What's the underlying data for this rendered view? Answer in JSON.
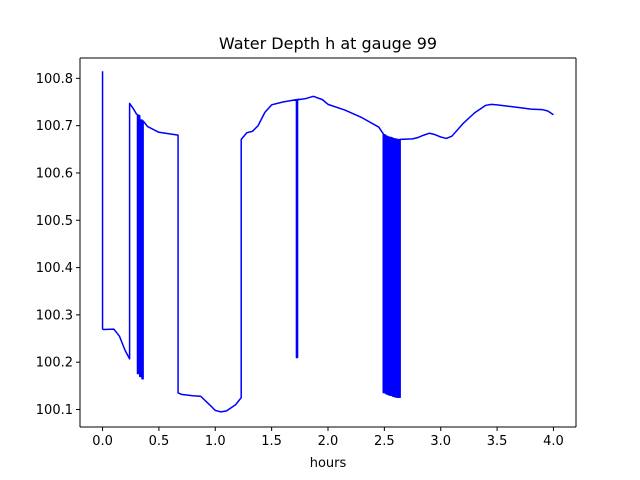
{
  "chart_data": {
    "type": "line",
    "title": "Water Depth h at gauge 99",
    "xlabel": "hours",
    "ylabel": "",
    "xlim": [
      -0.2,
      4.2
    ],
    "ylim": [
      100.063,
      100.843
    ],
    "xticks": [
      0.0,
      0.5,
      1.0,
      1.5,
      2.0,
      2.5,
      3.0,
      3.5,
      4.0
    ],
    "xtick_labels": [
      "0.0",
      "0.5",
      "1.0",
      "1.5",
      "2.0",
      "2.5",
      "3.0",
      "3.5",
      "4.0"
    ],
    "yticks": [
      100.1,
      100.2,
      100.3,
      100.4,
      100.5,
      100.6,
      100.7,
      100.8
    ],
    "ytick_labels": [
      "100.1",
      "100.2",
      "100.3",
      "100.4",
      "100.5",
      "100.6",
      "100.7",
      "100.8"
    ],
    "grid": false,
    "series": [
      {
        "color": "#0000ff",
        "x": [
          0.0,
          0.0,
          0.01,
          0.1,
          0.15,
          0.2,
          0.24,
          0.24,
          0.27,
          0.3,
          0.31,
          0.31,
          0.32,
          0.32,
          0.33,
          0.33,
          0.34,
          0.34,
          0.35,
          0.35,
          0.36,
          0.36,
          0.4,
          0.5,
          0.67,
          0.67,
          0.7,
          0.8,
          0.87,
          0.95,
          1.0,
          1.05,
          1.1,
          1.18,
          1.23,
          1.23,
          1.28,
          1.33,
          1.38,
          1.44,
          1.5,
          1.6,
          1.72,
          1.72,
          1.73,
          1.73,
          1.74,
          1.74,
          1.8,
          1.87,
          1.95,
          2.0,
          2.15,
          2.3,
          2.45,
          2.49,
          2.49,
          2.5,
          2.5,
          2.51,
          2.51,
          2.52,
          2.52,
          2.53,
          2.53,
          2.54,
          2.54,
          2.55,
          2.55,
          2.56,
          2.56,
          2.57,
          2.57,
          2.58,
          2.58,
          2.59,
          2.59,
          2.6,
          2.6,
          2.61,
          2.61,
          2.62,
          2.62,
          2.63,
          2.63,
          2.64,
          2.64,
          2.75,
          2.8,
          2.85,
          2.9,
          2.95,
          3.0,
          3.05,
          3.1,
          3.2,
          3.3,
          3.4,
          3.45,
          3.5,
          3.6,
          3.7,
          3.8,
          3.9,
          3.95,
          4.0
        ],
        "y": [
          100.815,
          100.27,
          100.269,
          100.27,
          100.255,
          100.225,
          100.207,
          100.747,
          100.737,
          100.725,
          100.723,
          100.176,
          100.176,
          100.722,
          100.721,
          100.17,
          100.17,
          100.712,
          100.712,
          100.165,
          100.165,
          100.71,
          100.698,
          100.686,
          100.68,
          100.135,
          100.132,
          100.129,
          100.128,
          100.11,
          100.098,
          100.095,
          100.097,
          100.11,
          100.125,
          100.671,
          100.685,
          100.688,
          100.7,
          100.728,
          100.744,
          100.75,
          100.755,
          100.21,
          100.21,
          100.755,
          100.756,
          100.755,
          100.757,
          100.762,
          100.755,
          100.745,
          100.733,
          100.717,
          100.697,
          100.683,
          100.136,
          100.136,
          100.681,
          100.68,
          100.134,
          100.133,
          100.678,
          100.677,
          100.132,
          100.131,
          100.676,
          100.675,
          100.13,
          100.13,
          100.675,
          100.674,
          100.129,
          100.128,
          100.673,
          100.672,
          100.127,
          100.127,
          100.672,
          100.671,
          100.126,
          100.126,
          100.671,
          100.67,
          100.126,
          100.126,
          100.671,
          100.672,
          100.675,
          100.68,
          100.684,
          100.681,
          100.676,
          100.673,
          100.678,
          100.705,
          100.727,
          100.743,
          100.745,
          100.744,
          100.741,
          100.738,
          100.735,
          100.734,
          100.731,
          100.723
        ]
      }
    ]
  }
}
